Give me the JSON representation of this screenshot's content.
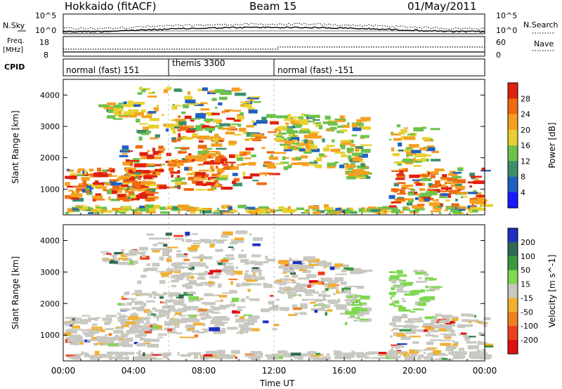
{
  "header": {
    "title_left": "Hokkaido (fitACF)",
    "title_mid": "Beam 15",
    "title_right": "01/May/2011"
  },
  "labels": {
    "nsky": "N.Sky",
    "freq_line1": "Freq.",
    "freq_line2": "[MHz]",
    "cpid": "CPID",
    "nsearch": "N.Search",
    "nave": "Nave"
  },
  "noise_panel": {
    "left_ticks": [
      "10^5",
      "10^0"
    ],
    "right_ticks": [
      "10^5",
      "10^0"
    ]
  },
  "freq_panel": {
    "left_ticks": [
      "18",
      "8"
    ],
    "right_ticks": [
      "60",
      "0"
    ]
  },
  "cpid_segments": [
    {
      "label": "normal (fast) 151",
      "start_h": 0
    },
    {
      "label": "themis 3300",
      "start_h": 6
    },
    {
      "label": "normal (fast) -151",
      "start_h": 12
    }
  ],
  "chart_data": [
    {
      "type": "heatmap",
      "panel": "power",
      "ylabel": "Slant Range [km]",
      "xlabel": "Time UT",
      "xlim": [
        0,
        24
      ],
      "ylim": [
        180,
        4500
      ],
      "y_ticks": [
        1000,
        2000,
        3000,
        4000
      ],
      "x_tick_labels": [
        "00:00",
        "04:00",
        "08:00",
        "12:00",
        "16:00",
        "20:00",
        "00:00"
      ],
      "colorbar": {
        "label": "Power [dB]",
        "ticks": [
          "4",
          "8",
          "12",
          "16",
          "20",
          "24",
          "28"
        ],
        "colors": [
          "#1a1aff",
          "#2060c0",
          "#3d8f6a",
          "#6cc24a",
          "#e8d030",
          "#f5a020",
          "#f06a10",
          "#e02010"
        ]
      }
    },
    {
      "type": "heatmap",
      "panel": "velocity",
      "ylabel": "Slant Range [km]",
      "xlabel": "Time UT",
      "xlim": [
        0,
        24
      ],
      "ylim": [
        180,
        4500
      ],
      "y_ticks": [
        1000,
        2000,
        3000,
        4000
      ],
      "x_tick_labels": [
        "00:00",
        "04:00",
        "08:00",
        "12:00",
        "16:00",
        "20:00",
        "00:00"
      ],
      "colorbar": {
        "label": "Velocity [m s^-1]",
        "ticks": [
          "200",
          "100",
          "50",
          "15",
          "-15",
          "-50",
          "-100",
          "-200"
        ],
        "colors": [
          "#2030c0",
          "#2d6a50",
          "#3a9a40",
          "#7fd850",
          "#c8c8c0",
          "#f0b030",
          "#f08020",
          "#f04020",
          "#e01010"
        ]
      }
    }
  ],
  "xaxis": {
    "title": "Time UT"
  }
}
